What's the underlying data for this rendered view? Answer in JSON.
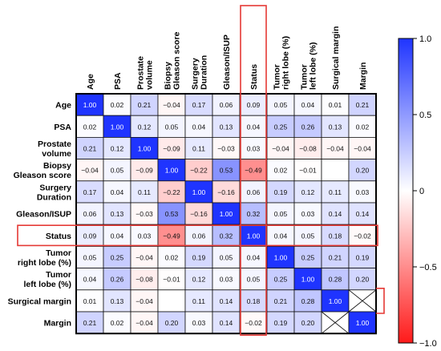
{
  "chart_data": {
    "type": "heatmap",
    "variables": [
      "Age",
      "PSA",
      "Prostate volume",
      "Biopsy Gleason score",
      "Surgery Duration",
      "Gleason/ISUP",
      "Status",
      "Tumor right lobe (%)",
      "Tumor left lobe (%)",
      "Surgical margin",
      "Margin"
    ],
    "column_labels": [
      [
        "Age"
      ],
      [
        "PSA"
      ],
      [
        "Prostate",
        "volume"
      ],
      [
        "Biopsy",
        "Gleason score"
      ],
      [
        "Surgery",
        "Duration"
      ],
      [
        "Gleason/ISUP"
      ],
      [
        "Status"
      ],
      [
        "Tumor",
        "right lobe (%)"
      ],
      [
        "Tumor",
        "left lobe (%)"
      ],
      [
        "Surgical margin"
      ],
      [
        "Margin"
      ]
    ],
    "row_labels": [
      [
        "Age"
      ],
      [
        "PSA"
      ],
      [
        "Prostate",
        "volume"
      ],
      [
        "Biopsy",
        "Gleason score"
      ],
      [
        "Surgery",
        "Duration"
      ],
      [
        "Gleason/ISUP"
      ],
      [
        "Status"
      ],
      [
        "Tumor",
        "right lobe (%)"
      ],
      [
        "Tumor",
        "left lobe (%)"
      ],
      [
        "Surgical margin"
      ],
      [
        "Margin"
      ]
    ],
    "values": [
      [
        "1.00",
        "0.02",
        "0.21",
        "−0.04",
        "0.17",
        "0.06",
        "0.09",
        "0.05",
        "0.04",
        "0.01",
        "0.21"
      ],
      [
        "0.02",
        "1.00",
        "0.12",
        "0.05",
        "0.04",
        "0.13",
        "0.04",
        "0.25",
        "0.26",
        "0.13",
        "0.02"
      ],
      [
        "0.21",
        "0.12",
        "1.00",
        "−0.09",
        "0.11",
        "−0.03",
        "0.03",
        "−0.04",
        "−0.08",
        "−0.04",
        "−0.04"
      ],
      [
        "−0.04",
        "0.05",
        "−0.09",
        "1.00",
        "−0.22",
        "0.53",
        "−0.49",
        "0.02",
        "−0.01",
        "",
        "0.20"
      ],
      [
        "0.17",
        "0.04",
        "0.11",
        "−0.22",
        "1.00",
        "−0.16",
        "0.06",
        "0.19",
        "0.12",
        "0.11",
        "0.03"
      ],
      [
        "0.06",
        "0.13",
        "−0.03",
        "0.53",
        "−0.16",
        "1.00",
        "0.32",
        "0.05",
        "0.03",
        "0.14",
        "0.14"
      ],
      [
        "0.09",
        "0.04",
        "0.03",
        "−0.49",
        "0.06",
        "0.32",
        "1.00",
        "0.04",
        "0.05",
        "0.18",
        "−0.02"
      ],
      [
        "0.05",
        "0.25",
        "−0.04",
        "0.02",
        "0.19",
        "0.05",
        "0.04",
        "1.00",
        "0.25",
        "0.21",
        "0.19"
      ],
      [
        "0.04",
        "0.26",
        "−0.08",
        "−0.01",
        "0.12",
        "0.03",
        "0.05",
        "0.25",
        "1.00",
        "0.28",
        "0.20"
      ],
      [
        "0.01",
        "0.13",
        "−0.04",
        "",
        "0.11",
        "0.14",
        "0.18",
        "0.21",
        "0.28",
        "1.00",
        "X"
      ],
      [
        "0.21",
        "0.02",
        "−0.04",
        "0.20",
        "0.03",
        "0.14",
        "−0.02",
        "0.19",
        "0.20",
        "X",
        "1.00"
      ]
    ],
    "missing_marker": "X",
    "highlighted_variable": "Status",
    "colorbar": {
      "range": [
        -1.0,
        1.0
      ],
      "tick_labels": [
        "1.0",
        "0.5",
        "0",
        "−0.5",
        "−1.0"
      ],
      "colors": {
        "positive": "#1f34ff",
        "zero": "#ffffff",
        "negative": "#ff1a1a"
      }
    },
    "highlight_color": "#e53935",
    "title": "",
    "xlabel": "",
    "ylabel": ""
  }
}
